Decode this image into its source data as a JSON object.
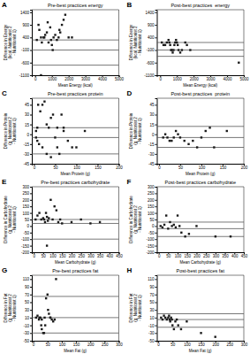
{
  "chart_data": [
    {
      "type": "scatter",
      "title": "Pre-best practices energy",
      "x_label": "Mean Energy (kcal)",
      "y_label": "Difference in Energy\n(kcal; Nutritionist 2\n- Nutritionist 1)",
      "annotations": [
        "A"
      ],
      "xlim": [
        -200,
        5000
      ],
      "ylim": [
        -1100,
        1500
      ],
      "xticks": [
        0,
        1000,
        2000,
        3000,
        4000,
        5000
      ],
      "yticks": [
        -1100,
        -600,
        -100,
        400,
        900,
        1400
      ],
      "color": "#1a1a1a",
      "marker": "square",
      "x": [
        100,
        200,
        250,
        350,
        400,
        500,
        550,
        600,
        700,
        750,
        800,
        900,
        950,
        1000,
        1050,
        1100,
        1200,
        1300,
        1400,
        1450,
        1500,
        1600,
        1700,
        1800,
        2000,
        2200,
        350
      ],
      "values": [
        300,
        900,
        700,
        400,
        200,
        400,
        400,
        500,
        600,
        1000,
        200,
        800,
        300,
        100,
        -100,
        400,
        500,
        300,
        400,
        700,
        600,
        900,
        1100,
        1300,
        400,
        400,
        -1100
      ],
      "hlines": {
        "values": [
          300,
          -100,
          -700
        ],
        "color": "#555555"
      }
    },
    {
      "type": "scatter",
      "title": "Post-best practices  energy",
      "x_label": "Mean Energy (kcal)",
      "y_label": "Difference in Energy\n(kcal; Nutritionist 2\n- Nutritionist 1)",
      "annotations": [
        "B"
      ],
      "xlim": [
        -200,
        5000
      ],
      "ylim": [
        -1100,
        1500
      ],
      "xticks": [
        0,
        1000,
        2000,
        3000,
        4000,
        5000
      ],
      "yticks": [
        -1100,
        -600,
        -100,
        400,
        900,
        1400
      ],
      "color": "#1a1a1a",
      "marker": "square",
      "x": [
        100,
        200,
        300,
        400,
        500,
        550,
        600,
        650,
        700,
        750,
        800,
        850,
        900,
        950,
        1000,
        1050,
        1100,
        1200,
        1300,
        1500,
        1600,
        1800,
        4700
      ],
      "values": [
        200,
        100,
        100,
        200,
        300,
        200,
        100,
        -100,
        -100,
        -200,
        -100,
        100,
        200,
        300,
        200,
        100,
        -100,
        -200,
        -100,
        200,
        100,
        -100,
        -600
      ],
      "hlines": {
        "values": [
          200,
          -100,
          -350
        ],
        "color": "#555555"
      }
    },
    {
      "type": "scatter",
      "title": "Pre-best practices protein",
      "x_label": "Mean Protein (g)",
      "y_label": "Difference in Protein\n(g; Nutritionist 2\n- Nutritionist 1)",
      "annotations": [
        "C"
      ],
      "xlim": [
        -5,
        200
      ],
      "ylim": [
        -45,
        55
      ],
      "xticks": [
        0,
        50,
        100,
        150,
        200
      ],
      "yticks": [
        -45,
        -30,
        -15,
        0,
        15,
        30,
        45
      ],
      "color": "#1a1a1a",
      "marker": "square",
      "x": [
        5,
        8,
        10,
        15,
        20,
        25,
        30,
        35,
        40,
        45,
        50,
        55,
        60,
        65,
        70,
        80,
        90,
        100,
        120,
        5,
        8,
        12,
        20,
        30,
        40,
        55,
        70
      ],
      "values": [
        5,
        10,
        45,
        35,
        45,
        50,
        15,
        10,
        25,
        30,
        -5,
        -20,
        -30,
        30,
        10,
        -10,
        -20,
        -20,
        5,
        -5,
        -10,
        -15,
        -20,
        -30,
        -35,
        10,
        5
      ],
      "hlines": {
        "values": [
          10,
          -5,
          -30
        ],
        "color": "#555555"
      }
    },
    {
      "type": "scatter",
      "title": "Post-best practices  protein",
      "x_label": "Mean Protein (g)",
      "y_label": "Difference in Protein\n(g; Nutritionist 2\n- Nutritionist 1)",
      "annotations": [
        "D"
      ],
      "xlim": [
        -5,
        200
      ],
      "ylim": [
        -45,
        55
      ],
      "xticks": [
        0,
        50,
        100,
        150,
        200
      ],
      "yticks": [
        -45,
        -30,
        -15,
        0,
        15,
        30,
        45
      ],
      "color": "#1a1a1a",
      "marker": "square",
      "x": [
        10,
        15,
        20,
        25,
        30,
        35,
        40,
        45,
        50,
        60,
        70,
        80,
        90,
        100,
        110,
        120,
        130,
        160
      ],
      "values": [
        -5,
        0,
        -5,
        -10,
        -10,
        -5,
        5,
        0,
        -5,
        -10,
        -15,
        -10,
        -20,
        -5,
        5,
        10,
        -20,
        5
      ],
      "hlines": {
        "values": [
          12,
          -5,
          -20
        ],
        "color": "#555555"
      }
    },
    {
      "type": "scatter",
      "title": "Pre-best practices carbohydrate",
      "x_label": "Mean Carbohydrate (g)",
      "y_label": "Difference in Carbohydrate\n(g; Nutritionist 2\n- Nutritionist 1)",
      "annotations": [
        "E"
      ],
      "xlim": [
        -10,
        450
      ],
      "ylim": [
        -200,
        300
      ],
      "xticks": [
        0,
        50,
        100,
        150,
        200,
        250,
        300,
        350,
        400,
        450
      ],
      "yticks": [
        -200,
        -150,
        -100,
        -50,
        0,
        50,
        100,
        150,
        200,
        250,
        300
      ],
      "color": "#1a1a1a",
      "marker": "square",
      "x": [
        10,
        20,
        30,
        40,
        50,
        55,
        60,
        65,
        70,
        75,
        80,
        90,
        100,
        110,
        120,
        130,
        140,
        150,
        200,
        250,
        300,
        350,
        70
      ],
      "values": [
        50,
        80,
        100,
        50,
        60,
        50,
        30,
        100,
        70,
        40,
        60,
        200,
        50,
        150,
        120,
        30,
        50,
        20,
        30,
        50,
        20,
        30,
        -150
      ],
      "hlines": {
        "values": [
          50,
          20,
          -100
        ],
        "color": "#555555"
      }
    },
    {
      "type": "scatter",
      "title": "Post-best practices carbohydrate",
      "x_label": "Mean Carbohydrate (g)",
      "y_label": "Difference in Carbohydrate\n(g; Nutritionist 2\n- Nutritionist 1)",
      "annotations": [
        "F"
      ],
      "xlim": [
        -10,
        450
      ],
      "ylim": [
        -200,
        300
      ],
      "xticks": [
        0,
        50,
        100,
        150,
        200,
        250,
        300,
        350,
        400,
        450
      ],
      "yticks": [
        -200,
        -150,
        -100,
        -50,
        0,
        50,
        100,
        150,
        200,
        250,
        300
      ],
      "color": "#1a1a1a",
      "marker": "square",
      "x": [
        10,
        20,
        30,
        40,
        50,
        60,
        70,
        80,
        90,
        100,
        110,
        120,
        140,
        160,
        200,
        300,
        380
      ],
      "values": [
        0,
        -10,
        10,
        80,
        -20,
        30,
        0,
        10,
        -10,
        80,
        0,
        -50,
        -80,
        -60,
        0,
        -80,
        -80
      ],
      "hlines": {
        "values": [
          30,
          -20,
          -80
        ],
        "color": "#555555"
      }
    },
    {
      "type": "scatter",
      "title": "Pre-best practices fat",
      "x_label": "Mean Fat (g)",
      "y_label": "Difference in Fat\n(g; Nutritionist 2\n- Nutritionist 1)",
      "annotations": [
        "G"
      ],
      "xlim": [
        -5,
        300
      ],
      "ylim": [
        -50,
        120
      ],
      "xticks": [
        0,
        50,
        100,
        150,
        200,
        250,
        300
      ],
      "yticks": [
        -50,
        -30,
        -10,
        10,
        30,
        50,
        70,
        90,
        110
      ],
      "color": "#1a1a1a",
      "marker": "square",
      "x": [
        10,
        15,
        20,
        22,
        25,
        28,
        30,
        35,
        38,
        40,
        42,
        45,
        50,
        52,
        55,
        60,
        65,
        70,
        75,
        80,
        60,
        30
      ],
      "values": [
        10,
        15,
        5,
        10,
        10,
        -10,
        -20,
        -30,
        -30,
        10,
        -10,
        60,
        70,
        30,
        20,
        10,
        5,
        0,
        5,
        110,
        10,
        5
      ],
      "hlines": {
        "values": [
          65,
          10,
          -30
        ],
        "color": "#555555"
      }
    },
    {
      "type": "scatter",
      "title": "Post-best practices fat",
      "x_label": "Mean Fat (g)",
      "y_label": "Difference in Fat\n(g; Nutritionist 2\n- Nutritionist 1)",
      "annotations": [
        "H"
      ],
      "xlim": [
        -5,
        300
      ],
      "ylim": [
        -50,
        120
      ],
      "xticks": [
        0,
        50,
        100,
        150,
        200,
        250,
        300
      ],
      "yticks": [
        -50,
        -30,
        -10,
        10,
        30,
        50,
        70,
        90,
        110
      ],
      "color": "#1a1a1a",
      "marker": "square",
      "x": [
        10,
        15,
        20,
        25,
        30,
        35,
        38,
        40,
        42,
        45,
        48,
        50,
        55,
        60,
        65,
        70,
        80,
        100,
        150,
        200
      ],
      "values": [
        10,
        5,
        15,
        10,
        5,
        10,
        15,
        5,
        0,
        10,
        5,
        -10,
        -20,
        0,
        5,
        -10,
        -20,
        0,
        -30,
        -40
      ],
      "hlines": {
        "values": [
          20,
          5,
          -15
        ],
        "color": "#555555"
      }
    }
  ]
}
